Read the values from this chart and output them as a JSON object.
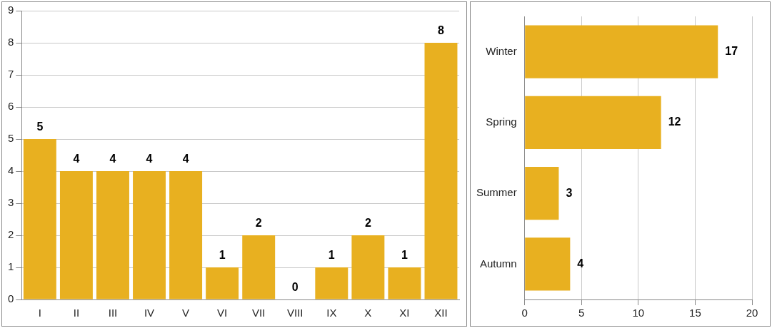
{
  "chart_data": [
    {
      "type": "bar",
      "categories": [
        "I",
        "II",
        "III",
        "IV",
        "V",
        "VI",
        "VII",
        "VIII",
        "IX",
        "X",
        "XI",
        "XII"
      ],
      "values": [
        5,
        4,
        4,
        4,
        4,
        1,
        2,
        0,
        1,
        2,
        1,
        8
      ],
      "color": "#e8b020",
      "ylim": [
        0,
        9
      ],
      "yticks": [
        0,
        1,
        2,
        3,
        4,
        5,
        6,
        7,
        8,
        9
      ],
      "grid": "y",
      "data_labels": true
    },
    {
      "type": "bar",
      "orientation": "horizontal",
      "categories": [
        "Winter",
        "Spring",
        "Summer",
        "Autumn"
      ],
      "values": [
        17,
        12,
        3,
        4
      ],
      "color": "#e8b020",
      "xlim": [
        0,
        20
      ],
      "xticks": [
        0,
        5,
        10,
        15,
        20
      ],
      "grid": "x",
      "data_labels": true
    }
  ]
}
